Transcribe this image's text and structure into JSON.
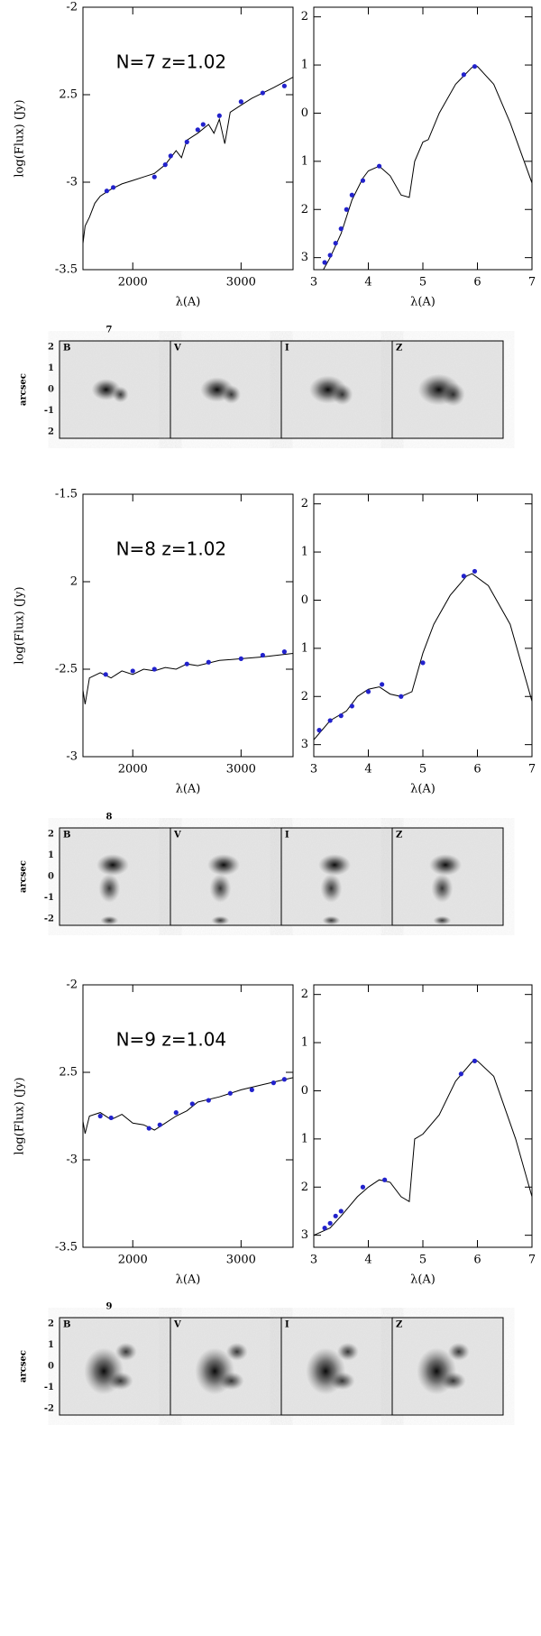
{
  "chart_data": [
    {
      "type": "line",
      "annotation": "N=7  z=1.02",
      "ylabel": "log(Flux) (Jy)",
      "xlabel": "λ(A)",
      "xlim": [
        1540,
        3480
      ],
      "xticks": [
        2000,
        3000
      ],
      "ylim": [
        -3.5,
        -2
      ],
      "yticks": [
        -2,
        {
          "value": -2.5,
          "label": "2.5"
        },
        -3,
        -3.5
      ],
      "series": [
        {
          "color": "#000000",
          "mode": "line",
          "x": [
            1540,
            1560,
            1600,
            1650,
            1700,
            1750,
            1800,
            1900,
            2000,
            2100,
            2200,
            2300,
            2400,
            2450,
            2500,
            2600,
            2700,
            2750,
            2800,
            2850,
            2900,
            3000,
            3100,
            3200,
            3300,
            3480
          ],
          "values": [
            -3.35,
            -3.25,
            -3.2,
            -3.12,
            -3.08,
            -3.06,
            -3.04,
            -3.01,
            -2.99,
            -2.97,
            -2.95,
            -2.9,
            -2.82,
            -2.86,
            -2.76,
            -2.72,
            -2.67,
            -2.72,
            -2.64,
            -2.78,
            -2.6,
            -2.56,
            -2.52,
            -2.49,
            -2.46,
            -2.4
          ]
        },
        {
          "color": "#2222cc",
          "mode": "markers",
          "x": [
            1760,
            1820,
            2200,
            2300,
            2350,
            2500,
            2600,
            2650,
            2800,
            3000,
            3200,
            3400
          ],
          "values": [
            -3.05,
            -3.03,
            -2.97,
            -2.9,
            -2.85,
            -2.77,
            -2.7,
            -2.67,
            -2.62,
            -2.54,
            -2.49,
            -2.45
          ]
        }
      ]
    },
    {
      "type": "line",
      "xlabel": "λ(A)",
      "xlim": [
        3,
        7
      ],
      "xticks": [
        3,
        4,
        5,
        6,
        7
      ],
      "ylim": [
        -3.25,
        2.2
      ],
      "yticks": [
        2,
        1,
        0,
        {
          "value": -1,
          "label": "1"
        },
        {
          "value": -2,
          "label": "2"
        },
        {
          "value": -3,
          "label": "3"
        }
      ],
      "series": [
        {
          "color": "#000000",
          "mode": "line",
          "x": [
            3.15,
            3.3,
            3.5,
            3.7,
            3.9,
            4.0,
            4.2,
            4.4,
            4.6,
            4.75,
            4.85,
            5.0,
            5.1,
            5.3,
            5.6,
            5.9,
            6.0,
            6.3,
            6.6,
            7.0
          ],
          "values": [
            -3.3,
            -3.0,
            -2.5,
            -1.8,
            -1.35,
            -1.2,
            -1.1,
            -1.3,
            -1.7,
            -1.75,
            -1.0,
            -0.6,
            -0.55,
            0,
            0.6,
            0.95,
            0.97,
            0.6,
            -0.2,
            -1.45
          ]
        },
        {
          "color": "#2222cc",
          "mode": "markers",
          "x": [
            3.2,
            3.3,
            3.4,
            3.5,
            3.6,
            3.7,
            3.9,
            4.2,
            5.75,
            5.95
          ],
          "values": [
            -3.1,
            -2.95,
            -2.7,
            -2.4,
            -2.0,
            -1.7,
            -1.4,
            -1.1,
            0.8,
            0.97
          ]
        }
      ]
    },
    {
      "type": "line",
      "annotation": "N=8  z=1.02",
      "ylabel": "log(Flux) (Jy)",
      "xlabel": "λ(A)",
      "xlim": [
        1540,
        3480
      ],
      "xticks": [
        2000,
        3000
      ],
      "ylim": [
        -3,
        -1.5
      ],
      "yticks": [
        -1.5,
        {
          "value": -2,
          "label": "2"
        },
        -2.5,
        -3
      ],
      "series": [
        {
          "color": "#000000",
          "mode": "line",
          "x": [
            1540,
            1560,
            1600,
            1700,
            1800,
            1900,
            2000,
            2100,
            2200,
            2300,
            2400,
            2500,
            2600,
            2800,
            3000,
            3200,
            3480
          ],
          "values": [
            -2.62,
            -2.7,
            -2.55,
            -2.52,
            -2.55,
            -2.51,
            -2.53,
            -2.5,
            -2.51,
            -2.49,
            -2.5,
            -2.47,
            -2.48,
            -2.45,
            -2.44,
            -2.43,
            -2.41
          ]
        },
        {
          "color": "#2222cc",
          "mode": "markers",
          "x": [
            1750,
            2000,
            2200,
            2500,
            2700,
            3000,
            3200,
            3400
          ],
          "values": [
            -2.53,
            -2.51,
            -2.5,
            -2.47,
            -2.46,
            -2.44,
            -2.42,
            -2.4
          ]
        }
      ]
    },
    {
      "type": "line",
      "xlabel": "λ(A)",
      "xlim": [
        3,
        7
      ],
      "xticks": [
        3,
        4,
        5,
        6,
        7
      ],
      "ylim": [
        -3.25,
        2.2
      ],
      "yticks": [
        2,
        1,
        0,
        {
          "value": -1,
          "label": "1"
        },
        {
          "value": -2,
          "label": "2"
        },
        {
          "value": -3,
          "label": "3"
        }
      ],
      "series": [
        {
          "color": "#000000",
          "mode": "line",
          "x": [
            3,
            3.3,
            3.6,
            3.8,
            4.0,
            4.2,
            4.4,
            4.6,
            4.8,
            5.0,
            5.2,
            5.5,
            5.8,
            5.9,
            6.2,
            6.6,
            7.0
          ],
          "values": [
            -2.9,
            -2.5,
            -2.3,
            -2.0,
            -1.85,
            -1.8,
            -1.95,
            -2.0,
            -1.9,
            -1.1,
            -0.5,
            0.1,
            0.5,
            0.55,
            0.3,
            -0.5,
            -2.1
          ]
        },
        {
          "color": "#2222cc",
          "mode": "markers",
          "x": [
            3.1,
            3.3,
            3.5,
            3.7,
            4.0,
            4.25,
            4.6,
            5.0,
            5.75,
            5.95
          ],
          "values": [
            -2.7,
            -2.5,
            -2.4,
            -2.2,
            -1.9,
            -1.75,
            -2.0,
            -1.3,
            0.5,
            0.6
          ]
        }
      ]
    },
    {
      "type": "line",
      "annotation": "N=9  z=1.04",
      "ylabel": "log(Flux) (Jy)",
      "xlabel": "λ(A)",
      "xlim": [
        1540,
        3480
      ],
      "xticks": [
        2000,
        3000
      ],
      "ylim": [
        -3.5,
        -2
      ],
      "yticks": [
        -2,
        {
          "value": -2.5,
          "label": "2.5"
        },
        -3,
        -3.5
      ],
      "series": [
        {
          "color": "#000000",
          "mode": "line",
          "x": [
            1540,
            1560,
            1600,
            1700,
            1800,
            1900,
            2000,
            2100,
            2200,
            2300,
            2400,
            2500,
            2600,
            2800,
            3000,
            3200,
            3480
          ],
          "values": [
            -2.78,
            -2.85,
            -2.75,
            -2.73,
            -2.77,
            -2.74,
            -2.79,
            -2.8,
            -2.83,
            -2.79,
            -2.75,
            -2.72,
            -2.67,
            -2.64,
            -2.6,
            -2.57,
            -2.53
          ]
        },
        {
          "color": "#2222cc",
          "mode": "markers",
          "x": [
            1700,
            1800,
            2150,
            2250,
            2400,
            2550,
            2700,
            2900,
            3100,
            3300,
            3400
          ],
          "values": [
            -2.75,
            -2.76,
            -2.82,
            -2.8,
            -2.73,
            -2.68,
            -2.66,
            -2.62,
            -2.6,
            -2.56,
            -2.54
          ]
        }
      ]
    },
    {
      "type": "line",
      "xlabel": "λ(A)",
      "xlim": [
        3,
        7
      ],
      "xticks": [
        3,
        4,
        5,
        6,
        7
      ],
      "ylim": [
        -3.25,
        2.2
      ],
      "yticks": [
        2,
        1,
        0,
        {
          "value": -1,
          "label": "1"
        },
        {
          "value": -2,
          "label": "2"
        },
        {
          "value": -3,
          "label": "3"
        }
      ],
      "series": [
        {
          "color": "#000000",
          "mode": "line",
          "x": [
            3,
            3.3,
            3.5,
            3.8,
            4.0,
            4.2,
            4.4,
            4.6,
            4.75,
            4.85,
            5.0,
            5.3,
            5.6,
            5.9,
            6.0,
            6.3,
            6.7,
            7.0
          ],
          "values": [
            -3.0,
            -2.85,
            -2.6,
            -2.2,
            -2.0,
            -1.85,
            -1.9,
            -2.2,
            -2.3,
            -1.0,
            -0.9,
            -0.5,
            0.2,
            0.6,
            0.62,
            0.3,
            -1.0,
            -2.2
          ]
        },
        {
          "color": "#2222cc",
          "mode": "markers",
          "x": [
            3.2,
            3.3,
            3.4,
            3.5,
            3.9,
            4.3,
            5.7,
            5.95
          ],
          "values": [
            -2.85,
            -2.75,
            -2.6,
            -2.5,
            -2.0,
            -1.85,
            0.35,
            0.62
          ]
        }
      ]
    }
  ],
  "stamps": [
    {
      "label": "7",
      "bands": [
        "B",
        "V",
        "I",
        "Z"
      ],
      "ylabel": "arcsec",
      "ylim": [
        -2.3,
        2.3
      ],
      "yticks": [
        2,
        1,
        0,
        -1,
        {
          "value": -2,
          "label": "2"
        }
      ]
    },
    {
      "label": "8",
      "bands": [
        "B",
        "V",
        "I",
        "Z"
      ],
      "ylabel": "arcsec",
      "ylim": [
        -2.3,
        2.3
      ],
      "yticks": [
        2,
        1,
        0,
        -1,
        -2
      ]
    },
    {
      "label": "9",
      "bands": [
        "B",
        "V",
        "I",
        "Z"
      ],
      "ylabel": "arcsec",
      "ylim": [
        -2.3,
        2.3
      ],
      "yticks": [
        2,
        1,
        0,
        -1,
        -2
      ]
    }
  ]
}
